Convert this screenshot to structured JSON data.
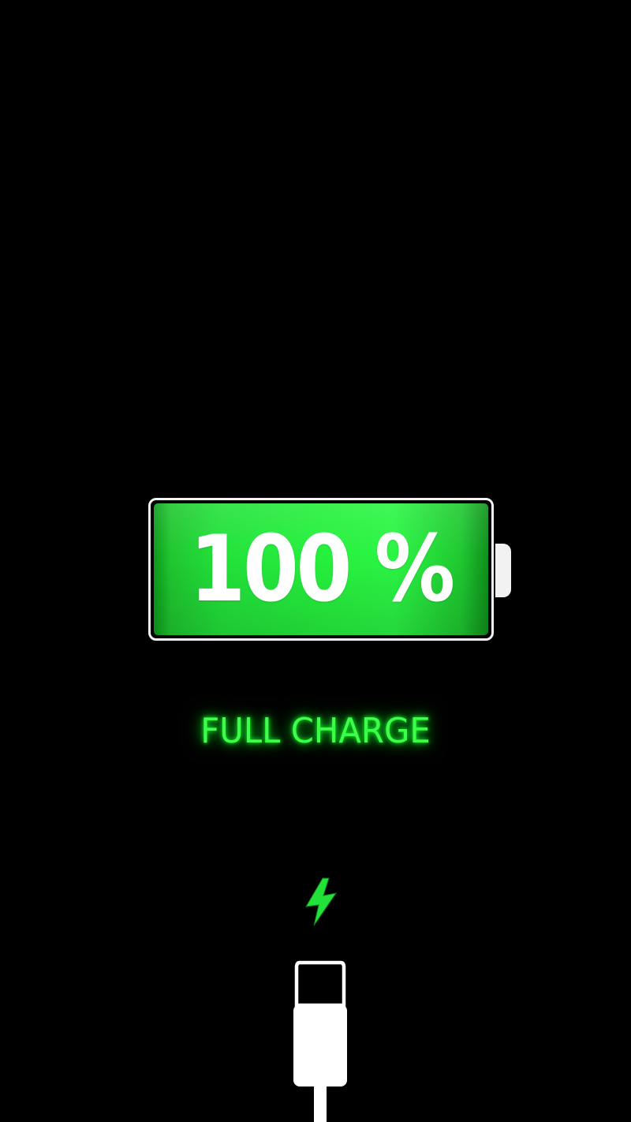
{
  "battery": {
    "level_percent": 100,
    "label": "100 %",
    "fill_color": "#26f03d",
    "outline_color": "#f2f2f2"
  },
  "status": {
    "text": "FULL CHARGE",
    "color": "#3dff4a"
  },
  "icons": {
    "bolt": "lightning-bolt-icon",
    "connector": "lightning-connector-icon"
  },
  "background_color": "#000000"
}
